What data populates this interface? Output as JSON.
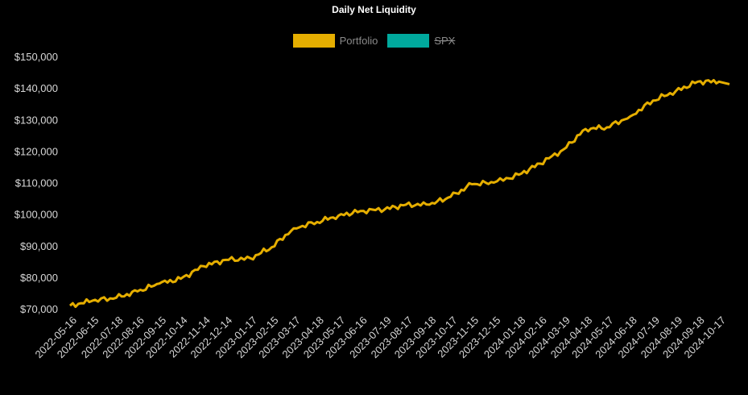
{
  "chart_data": {
    "type": "line",
    "title": "Daily Net Liquidity",
    "xlabel": "",
    "ylabel": "",
    "ylim": [
      70000,
      150000
    ],
    "yticks": [
      "$70,000",
      "$80,000",
      "$90,000",
      "$100,000",
      "$110,000",
      "$120,000",
      "$130,000",
      "$140,000",
      "$150,000"
    ],
    "xticks": [
      "2022-05-16",
      "2022-06-15",
      "2022-07-18",
      "2022-08-16",
      "2022-09-15",
      "2022-10-14",
      "2022-11-14",
      "2022-12-14",
      "2023-01-17",
      "2023-02-15",
      "2023-03-17",
      "2023-04-18",
      "2023-05-17",
      "2023-06-16",
      "2023-07-19",
      "2023-08-17",
      "2023-09-18",
      "2023-10-17",
      "2023-11-15",
      "2023-12-15",
      "2024-01-18",
      "2024-02-16",
      "2024-03-19",
      "2024-04-18",
      "2024-05-17",
      "2024-06-18",
      "2024-07-19",
      "2024-08-19",
      "2024-09-18",
      "2024-10-17"
    ],
    "grid": false,
    "legend_position": "top-center",
    "series": [
      {
        "name": "Portfolio",
        "color": "#e5ae00",
        "visible": true,
        "x": [
          "2022-05-16",
          "2022-06-15",
          "2022-07-18",
          "2022-08-16",
          "2022-09-15",
          "2022-10-14",
          "2022-11-14",
          "2022-12-14",
          "2023-01-17",
          "2023-02-15",
          "2023-03-17",
          "2023-04-18",
          "2023-05-17",
          "2023-06-16",
          "2023-07-19",
          "2023-08-17",
          "2023-09-18",
          "2023-10-17",
          "2023-11-15",
          "2023-12-15",
          "2024-01-18",
          "2024-02-16",
          "2024-03-19",
          "2024-04-18",
          "2024-05-17",
          "2024-06-18",
          "2024-07-19",
          "2024-08-19",
          "2024-09-18",
          "2024-10-17"
        ],
        "values": [
          71000,
          72500,
          73500,
          75500,
          78000,
          79500,
          83500,
          85500,
          86000,
          89500,
          95500,
          97500,
          99500,
          101000,
          101500,
          103000,
          103000,
          105500,
          109500,
          110000,
          112500,
          116000,
          120500,
          127000,
          127500,
          131000,
          136000,
          139000,
          142000,
          142000
        ]
      },
      {
        "name": "SPX",
        "color": "#00a99d",
        "visible": false,
        "x": [],
        "values": []
      }
    ]
  }
}
